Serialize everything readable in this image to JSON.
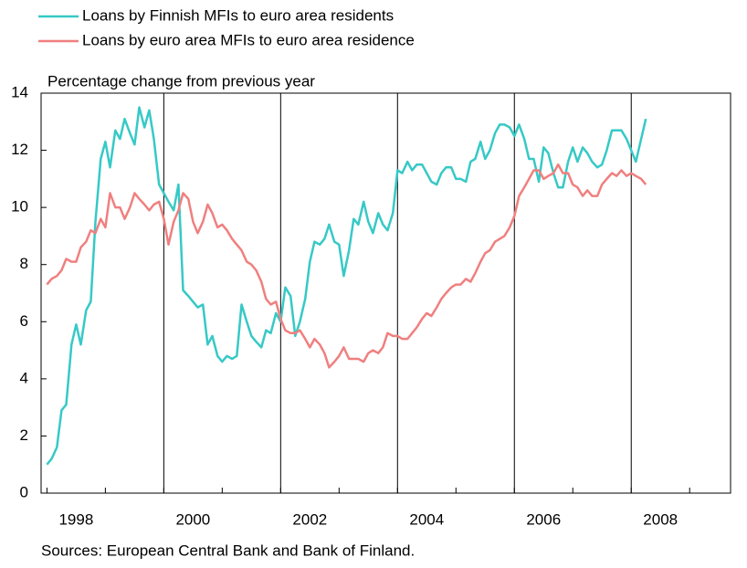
{
  "chart_data": {
    "type": "line",
    "title": "Percentage change from previous year",
    "source": "Sources: European Central Bank and Bank of Finland.",
    "x": [
      1998.0,
      1998.08,
      1998.17,
      1998.25,
      1998.33,
      1998.42,
      1998.5,
      1998.58,
      1998.67,
      1998.75,
      1998.83,
      1998.92,
      1999.0,
      1999.08,
      1999.17,
      1999.25,
      1999.33,
      1999.42,
      1999.5,
      1999.58,
      1999.67,
      1999.75,
      1999.83,
      1999.92,
      2000.0,
      2000.08,
      2000.17,
      2000.25,
      2000.33,
      2000.42,
      2000.5,
      2000.58,
      2000.67,
      2000.75,
      2000.83,
      2000.92,
      2001.0,
      2001.08,
      2001.17,
      2001.25,
      2001.33,
      2001.42,
      2001.5,
      2001.58,
      2001.67,
      2001.75,
      2001.83,
      2001.92,
      2002.0,
      2002.08,
      2002.17,
      2002.25,
      2002.33,
      2002.42,
      2002.5,
      2002.58,
      2002.67,
      2002.75,
      2002.83,
      2002.92,
      2003.0,
      2003.08,
      2003.17,
      2003.25,
      2003.33,
      2003.42,
      2003.5,
      2003.58,
      2003.67,
      2003.75,
      2003.83,
      2003.92,
      2004.0,
      2004.08,
      2004.17,
      2004.25,
      2004.33,
      2004.42,
      2004.5,
      2004.58,
      2004.67,
      2004.75,
      2004.83,
      2004.92,
      2005.0,
      2005.08,
      2005.17,
      2005.25,
      2005.33,
      2005.42,
      2005.5,
      2005.58,
      2005.67,
      2005.75,
      2005.83,
      2005.92,
      2006.0,
      2006.08,
      2006.17,
      2006.25,
      2006.33,
      2006.42,
      2006.5,
      2006.58,
      2006.67,
      2006.75,
      2006.83,
      2006.92,
      2007.0,
      2007.08,
      2007.17,
      2007.25,
      2007.33,
      2007.42,
      2007.5,
      2007.58,
      2007.67,
      2007.75,
      2007.83,
      2007.92,
      2008.0,
      2008.08,
      2008.17,
      2008.25
    ],
    "series": [
      {
        "name": "Loans by Finnish MFIs to euro area residents",
        "color": "#36c9c6",
        "values": [
          1.0,
          1.2,
          1.6,
          2.9,
          3.1,
          5.2,
          5.9,
          5.2,
          6.4,
          6.7,
          9.5,
          11.7,
          12.3,
          11.4,
          12.7,
          12.4,
          13.1,
          12.6,
          12.2,
          13.5,
          12.8,
          13.4,
          12.4,
          10.8,
          10.5,
          10.2,
          9.9,
          10.8,
          7.1,
          6.9,
          6.7,
          6.5,
          6.6,
          5.2,
          5.5,
          4.8,
          4.6,
          4.8,
          4.7,
          4.8,
          6.6,
          6.0,
          5.5,
          5.3,
          5.1,
          5.7,
          5.6,
          6.3,
          6.0,
          7.2,
          6.9,
          5.5,
          6.0,
          6.8,
          8.1,
          8.8,
          8.7,
          8.9,
          9.4,
          8.8,
          8.7,
          7.6,
          8.5,
          9.6,
          9.4,
          10.2,
          9.5,
          9.1,
          9.8,
          9.4,
          9.2,
          9.8,
          11.3,
          11.2,
          11.6,
          11.3,
          11.5,
          11.5,
          11.2,
          10.9,
          10.8,
          11.2,
          11.4,
          11.4,
          11.0,
          11.0,
          10.9,
          11.6,
          11.7,
          12.3,
          11.7,
          12.0,
          12.6,
          12.9,
          12.9,
          12.8,
          12.5,
          12.9,
          12.4,
          11.7,
          11.7,
          10.9,
          12.1,
          11.9,
          11.2,
          10.7,
          10.7,
          11.6,
          12.1,
          11.6,
          12.1,
          11.9,
          11.6,
          11.4,
          11.5,
          12.0,
          12.7,
          12.7,
          12.7,
          12.4,
          12.0,
          11.6,
          12.4,
          13.1
        ]
      },
      {
        "name": "Loans by euro area MFIs to euro area residence",
        "color": "#f07f7f",
        "values": [
          7.3,
          7.5,
          7.6,
          7.8,
          8.2,
          8.1,
          8.1,
          8.6,
          8.8,
          9.2,
          9.1,
          9.6,
          9.3,
          10.5,
          10.0,
          10.0,
          9.6,
          10.0,
          10.5,
          10.3,
          10.1,
          9.9,
          10.1,
          10.2,
          9.6,
          8.7,
          9.5,
          9.9,
          10.5,
          10.3,
          9.5,
          9.1,
          9.5,
          10.1,
          9.8,
          9.3,
          9.4,
          9.2,
          8.9,
          8.7,
          8.5,
          8.1,
          8.0,
          7.8,
          7.4,
          6.8,
          6.6,
          6.7,
          6.1,
          5.7,
          5.6,
          5.6,
          5.7,
          5.4,
          5.1,
          5.4,
          5.2,
          4.9,
          4.4,
          4.6,
          4.8,
          5.1,
          4.7,
          4.7,
          4.7,
          4.6,
          4.9,
          5.0,
          4.9,
          5.1,
          5.6,
          5.5,
          5.5,
          5.4,
          5.4,
          5.6,
          5.8,
          6.1,
          6.3,
          6.2,
          6.5,
          6.8,
          7.0,
          7.2,
          7.3,
          7.3,
          7.5,
          7.4,
          7.7,
          8.1,
          8.4,
          8.5,
          8.8,
          8.9,
          9.0,
          9.3,
          9.7,
          10.4,
          10.7,
          11.0,
          11.3,
          11.3,
          11.0,
          11.1,
          11.2,
          11.5,
          11.2,
          11.2,
          10.8,
          10.7,
          10.4,
          10.6,
          10.4,
          10.4,
          10.8,
          11.0,
          11.2,
          11.1,
          11.3,
          11.1,
          11.2,
          11.1,
          11.0,
          10.8
        ]
      }
    ],
    "xlim": [
      1997.9,
      2009.7
    ],
    "xticks": [
      {
        "value": 1998.5,
        "label": "1998"
      },
      {
        "value": 2000.5,
        "label": "2000"
      },
      {
        "value": 2002.5,
        "label": "2002"
      },
      {
        "value": 2004.5,
        "label": "2004"
      },
      {
        "value": 2006.5,
        "label": "2006"
      },
      {
        "value": 2008.5,
        "label": "2008"
      }
    ],
    "ylim": [
      0,
      14
    ],
    "yticks": [
      0,
      2,
      4,
      6,
      8,
      10,
      12,
      14
    ],
    "grid": true,
    "legend": "top-left"
  }
}
